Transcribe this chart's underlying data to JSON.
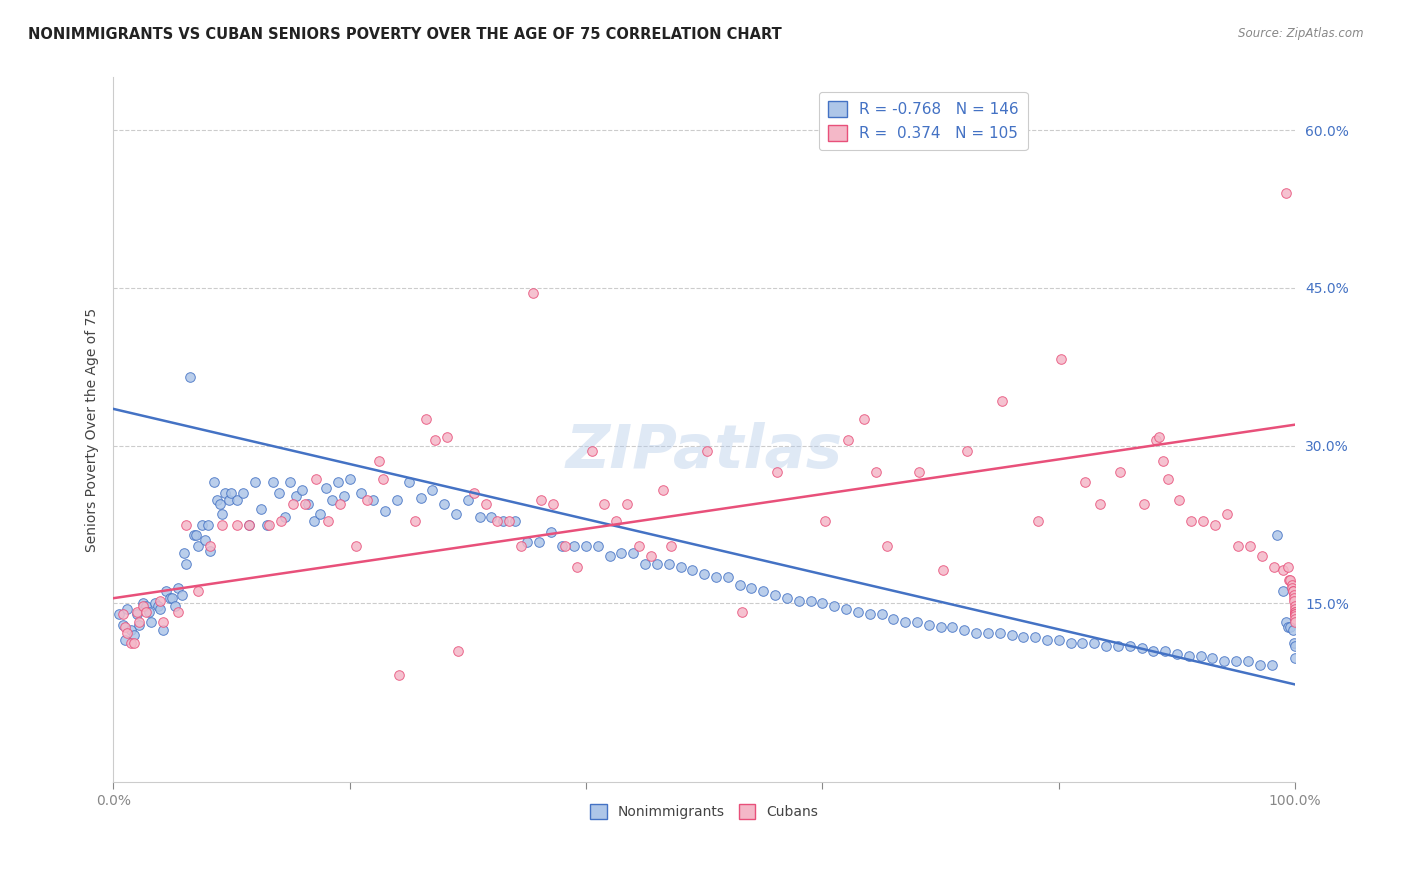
{
  "title": "NONIMMIGRANTS VS CUBAN SENIORS POVERTY OVER THE AGE OF 75 CORRELATION CHART",
  "source": "Source: ZipAtlas.com",
  "ylabel": "Seniors Poverty Over the Age of 75",
  "ytick_labels": [
    "15.0%",
    "30.0%",
    "45.0%",
    "60.0%"
  ],
  "ytick_values": [
    0.15,
    0.3,
    0.45,
    0.6
  ],
  "xlim": [
    0.0,
    1.0
  ],
  "ylim": [
    -0.02,
    0.65
  ],
  "nonimmigrant_color": "#aec6e8",
  "nonimmigrant_line_color": "#4472c4",
  "cuban_color": "#f4b8c8",
  "cuban_line_color": "#e8507a",
  "nonimmigrant_R": -0.768,
  "nonimmigrant_N": 146,
  "cuban_R": 0.374,
  "cuban_N": 105,
  "ni_line_y0": 0.335,
  "ni_line_y1": 0.073,
  "cu_line_y0": 0.155,
  "cu_line_y1": 0.32,
  "background_color": "#ffffff",
  "grid_color": "#cccccc",
  "watermark": "ZIPatlas",
  "ni_x": [
    0.005,
    0.008,
    0.01,
    0.012,
    0.015,
    0.018,
    0.02,
    0.022,
    0.025,
    0.028,
    0.03,
    0.032,
    0.035,
    0.038,
    0.04,
    0.042,
    0.045,
    0.048,
    0.05,
    0.052,
    0.055,
    0.058,
    0.06,
    0.062,
    0.065,
    0.068,
    0.07,
    0.072,
    0.075,
    0.078,
    0.08,
    0.082,
    0.085,
    0.088,
    0.09,
    0.092,
    0.095,
    0.098,
    0.1,
    0.105,
    0.11,
    0.115,
    0.12,
    0.125,
    0.13,
    0.135,
    0.14,
    0.145,
    0.15,
    0.155,
    0.16,
    0.165,
    0.17,
    0.175,
    0.18,
    0.185,
    0.19,
    0.195,
    0.2,
    0.21,
    0.22,
    0.23,
    0.24,
    0.25,
    0.26,
    0.27,
    0.28,
    0.29,
    0.3,
    0.31,
    0.32,
    0.33,
    0.34,
    0.35,
    0.36,
    0.37,
    0.38,
    0.39,
    0.4,
    0.41,
    0.42,
    0.43,
    0.44,
    0.45,
    0.46,
    0.47,
    0.48,
    0.49,
    0.5,
    0.51,
    0.52,
    0.53,
    0.54,
    0.55,
    0.56,
    0.57,
    0.58,
    0.59,
    0.6,
    0.61,
    0.62,
    0.63,
    0.64,
    0.65,
    0.66,
    0.67,
    0.68,
    0.69,
    0.7,
    0.71,
    0.72,
    0.73,
    0.74,
    0.75,
    0.76,
    0.77,
    0.78,
    0.79,
    0.8,
    0.81,
    0.82,
    0.83,
    0.84,
    0.85,
    0.86,
    0.87,
    0.88,
    0.89,
    0.9,
    0.91,
    0.92,
    0.93,
    0.94,
    0.95,
    0.96,
    0.97,
    0.98,
    0.985,
    0.99,
    0.992,
    0.994,
    0.996,
    0.998,
    0.999,
    1.0,
    1.0
  ],
  "ni_y": [
    0.14,
    0.13,
    0.115,
    0.145,
    0.125,
    0.12,
    0.14,
    0.13,
    0.15,
    0.148,
    0.142,
    0.132,
    0.15,
    0.148,
    0.145,
    0.125,
    0.162,
    0.155,
    0.155,
    0.148,
    0.165,
    0.158,
    0.198,
    0.188,
    0.365,
    0.215,
    0.215,
    0.205,
    0.225,
    0.21,
    0.225,
    0.2,
    0.265,
    0.248,
    0.245,
    0.235,
    0.255,
    0.248,
    0.255,
    0.248,
    0.255,
    0.225,
    0.265,
    0.24,
    0.225,
    0.265,
    0.255,
    0.232,
    0.265,
    0.252,
    0.258,
    0.245,
    0.228,
    0.235,
    0.26,
    0.248,
    0.265,
    0.252,
    0.268,
    0.255,
    0.248,
    0.238,
    0.248,
    0.265,
    0.25,
    0.258,
    0.245,
    0.235,
    0.248,
    0.232,
    0.232,
    0.228,
    0.228,
    0.208,
    0.208,
    0.218,
    0.205,
    0.205,
    0.205,
    0.205,
    0.195,
    0.198,
    0.198,
    0.188,
    0.188,
    0.188,
    0.185,
    0.182,
    0.178,
    0.175,
    0.175,
    0.168,
    0.165,
    0.162,
    0.158,
    0.155,
    0.152,
    0.152,
    0.15,
    0.148,
    0.145,
    0.142,
    0.14,
    0.14,
    0.135,
    0.132,
    0.132,
    0.13,
    0.128,
    0.128,
    0.125,
    0.122,
    0.122,
    0.122,
    0.12,
    0.118,
    0.118,
    0.115,
    0.115,
    0.112,
    0.112,
    0.112,
    0.11,
    0.11,
    0.11,
    0.108,
    0.105,
    0.105,
    0.102,
    0.1,
    0.1,
    0.098,
    0.095,
    0.095,
    0.095,
    0.092,
    0.092,
    0.215,
    0.162,
    0.132,
    0.128,
    0.128,
    0.125,
    0.112,
    0.11,
    0.098
  ],
  "cu_x": [
    0.008,
    0.01,
    0.012,
    0.015,
    0.018,
    0.02,
    0.022,
    0.025,
    0.028,
    0.04,
    0.042,
    0.055,
    0.062,
    0.072,
    0.082,
    0.092,
    0.105,
    0.115,
    0.132,
    0.142,
    0.152,
    0.162,
    0.172,
    0.182,
    0.192,
    0.205,
    0.215,
    0.225,
    0.228,
    0.242,
    0.255,
    0.265,
    0.272,
    0.282,
    0.292,
    0.305,
    0.315,
    0.325,
    0.335,
    0.345,
    0.355,
    0.362,
    0.372,
    0.382,
    0.392,
    0.405,
    0.415,
    0.425,
    0.435,
    0.445,
    0.455,
    0.465,
    0.472,
    0.502,
    0.532,
    0.562,
    0.602,
    0.622,
    0.635,
    0.645,
    0.655,
    0.682,
    0.702,
    0.722,
    0.752,
    0.782,
    0.802,
    0.822,
    0.835,
    0.852,
    0.872,
    0.882,
    0.885,
    0.888,
    0.892,
    0.902,
    0.912,
    0.922,
    0.932,
    0.942,
    0.952,
    0.962,
    0.972,
    0.982,
    0.99,
    0.992,
    0.994,
    0.995,
    0.996,
    0.997,
    0.997,
    0.998,
    0.998,
    0.999,
    0.999,
    0.999,
    1.0,
    1.0,
    1.0,
    1.0,
    1.0,
    1.0,
    1.0,
    1.0,
    1.0
  ],
  "cu_y": [
    0.14,
    0.128,
    0.122,
    0.112,
    0.112,
    0.142,
    0.132,
    0.148,
    0.142,
    0.152,
    0.132,
    0.142,
    0.225,
    0.162,
    0.205,
    0.225,
    0.225,
    0.225,
    0.225,
    0.228,
    0.245,
    0.245,
    0.268,
    0.228,
    0.245,
    0.205,
    0.248,
    0.285,
    0.268,
    0.082,
    0.228,
    0.325,
    0.305,
    0.308,
    0.105,
    0.255,
    0.245,
    0.228,
    0.228,
    0.205,
    0.445,
    0.248,
    0.245,
    0.205,
    0.185,
    0.295,
    0.245,
    0.228,
    0.245,
    0.205,
    0.195,
    0.258,
    0.205,
    0.295,
    0.142,
    0.275,
    0.228,
    0.305,
    0.325,
    0.275,
    0.205,
    0.275,
    0.182,
    0.295,
    0.342,
    0.228,
    0.382,
    0.265,
    0.245,
    0.275,
    0.245,
    0.305,
    0.308,
    0.285,
    0.268,
    0.248,
    0.228,
    0.228,
    0.225,
    0.235,
    0.205,
    0.205,
    0.195,
    0.185,
    0.182,
    0.54,
    0.185,
    0.172,
    0.172,
    0.168,
    0.165,
    0.162,
    0.162,
    0.158,
    0.155,
    0.152,
    0.148,
    0.145,
    0.142,
    0.142,
    0.14,
    0.14,
    0.138,
    0.135,
    0.132
  ]
}
